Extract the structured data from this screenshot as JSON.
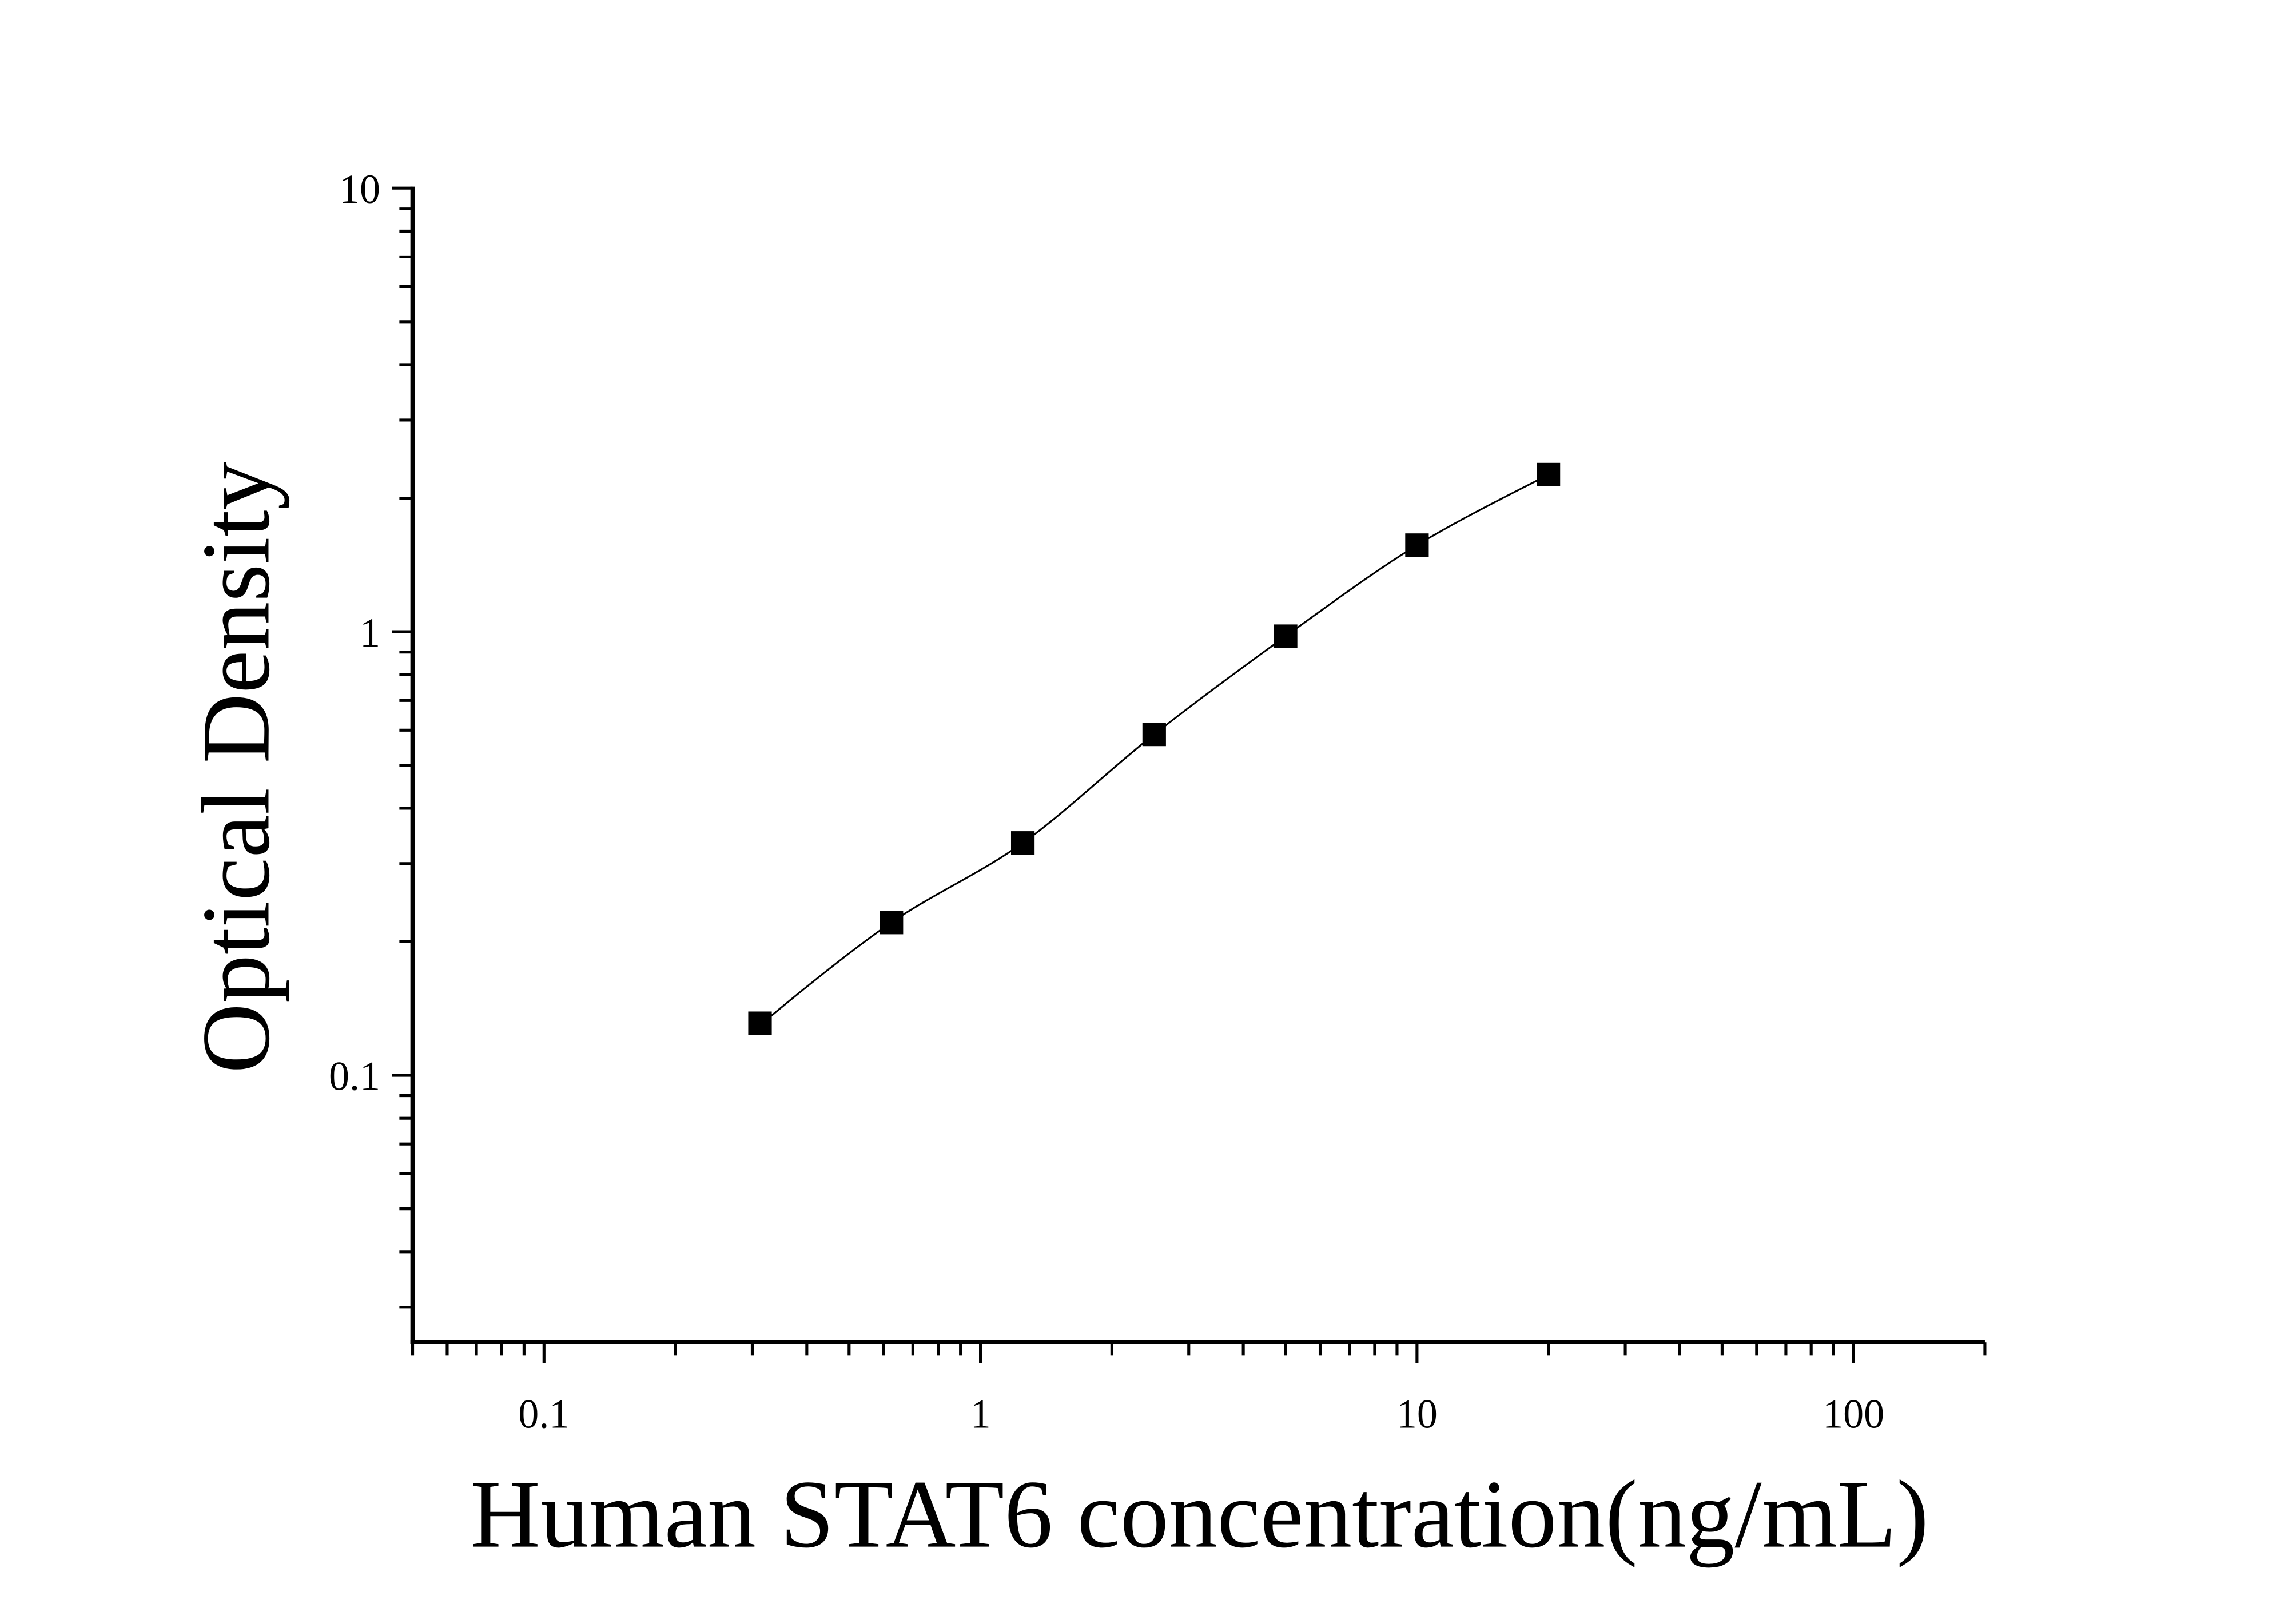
{
  "chart_data": {
    "type": "scatter",
    "title": "",
    "xlabel": "Human STAT6 concentration(ng/mL)",
    "ylabel": "Optical Density",
    "xscale": "log",
    "yscale": "log",
    "xlim": [
      0.05,
      200
    ],
    "ylim": [
      0.025,
      10
    ],
    "x_tick_labels": [
      "0.1",
      "1",
      "10",
      "100"
    ],
    "x_ticks": [
      0.1,
      1,
      10,
      100
    ],
    "y_tick_labels": [
      "0.1",
      "1",
      "10"
    ],
    "y_ticks": [
      0.1,
      1,
      10
    ],
    "grid": false,
    "marker": "square",
    "fit_curve": true,
    "color": "#000000",
    "x": [
      0.3125,
      0.625,
      1.25,
      2.5,
      5,
      10,
      20
    ],
    "y": [
      0.131,
      0.221,
      0.334,
      0.587,
      0.977,
      1.567,
      2.26
    ]
  }
}
